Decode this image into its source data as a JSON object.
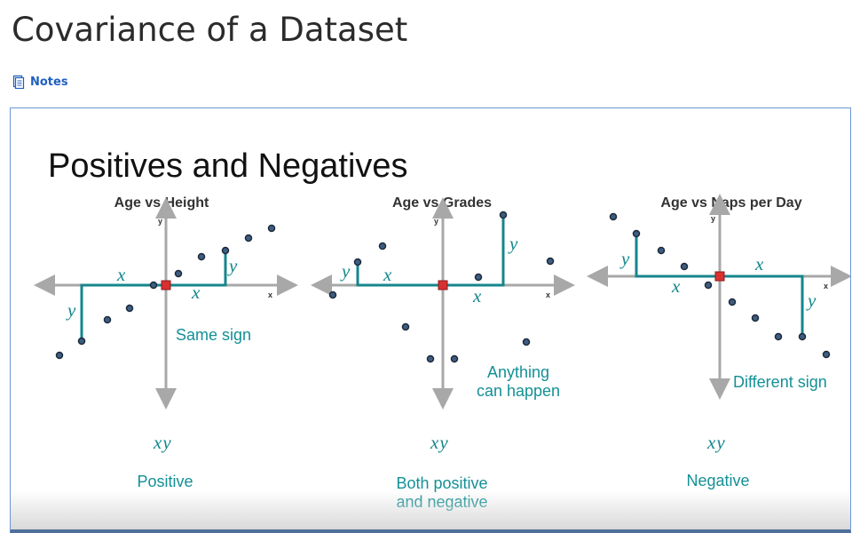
{
  "page": {
    "title": "Covariance of a Dataset",
    "notes_label": "Notes"
  },
  "slide": {
    "heading": "Positives and Negatives",
    "panels": [
      {
        "title": "Age vs Height",
        "axis_x": "x",
        "axis_y": "y",
        "caption": "Same sign",
        "product": "xy",
        "result": [
          "Positive"
        ]
      },
      {
        "title": "Age vs Grades",
        "axis_x": "x",
        "axis_y": "y",
        "caption": [
          "Anything",
          "can happen"
        ],
        "product": "xy",
        "result": [
          "Both positive",
          "and negative"
        ]
      },
      {
        "title": "Age vs Naps per Day",
        "axis_x": "x",
        "axis_y": "y",
        "caption": "Different sign",
        "product": "xy",
        "result": [
          "Negative"
        ]
      }
    ],
    "var_x": "x",
    "var_y": "y"
  },
  "colors": {
    "teal": "#14868c",
    "axis_gray": "#a8a8a8",
    "point_fill": "#3d5d82",
    "point_stroke": "#1d2a3a",
    "mean_marker": "#d93030",
    "frame_border": "#6b98d6"
  }
}
